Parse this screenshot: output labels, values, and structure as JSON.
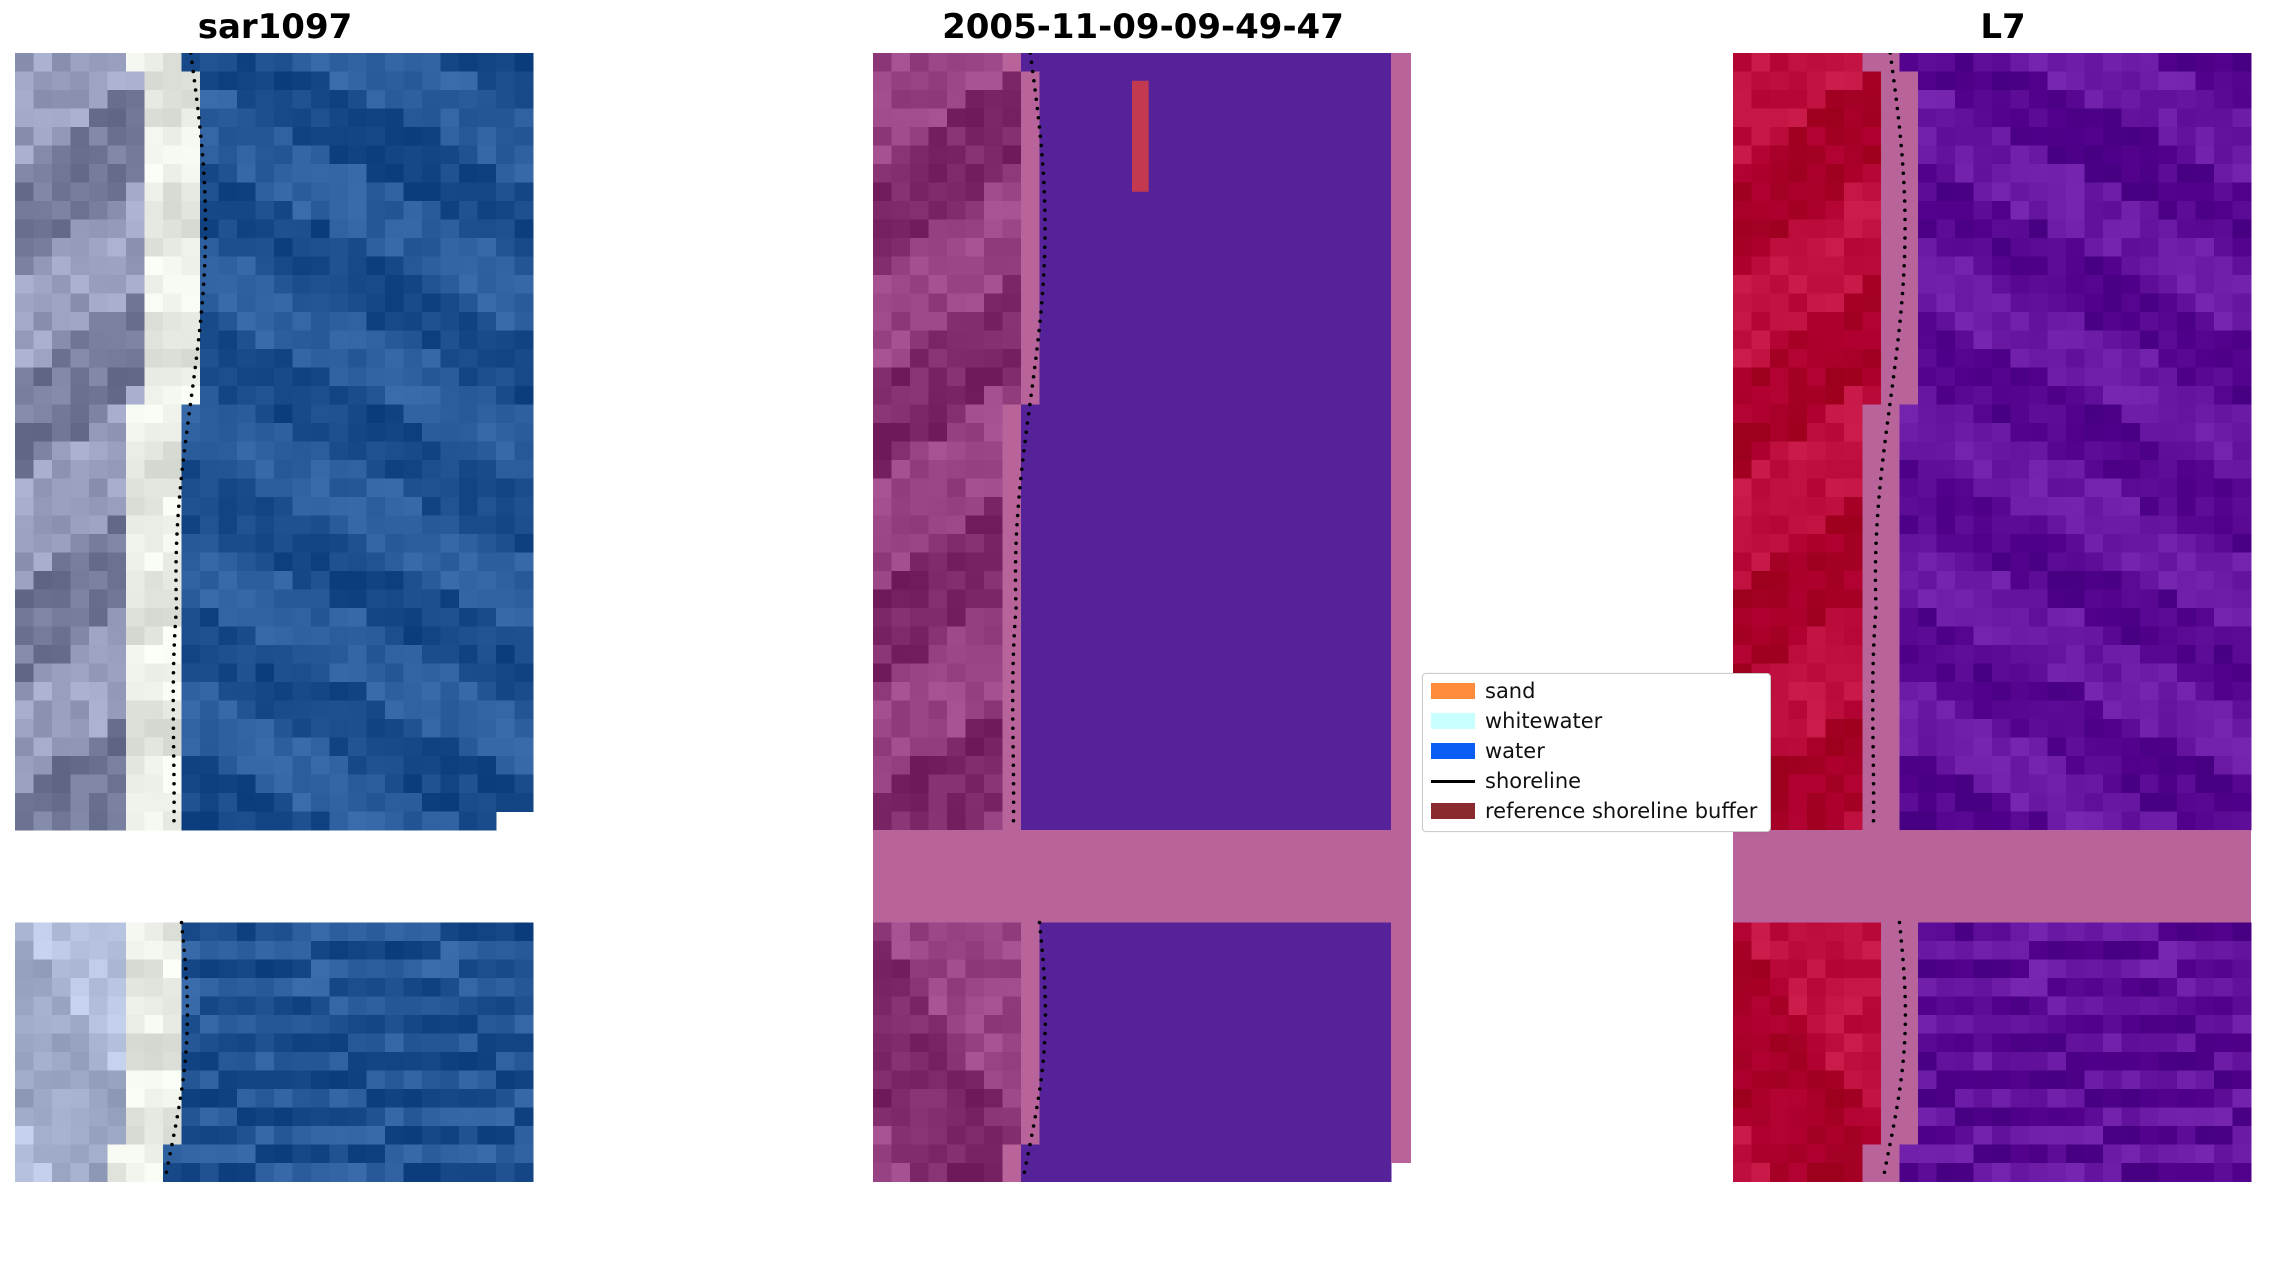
{
  "panels": [
    {
      "title": "sar1097",
      "type": "rgb-image"
    },
    {
      "title": "2005-11-09-09-49-47",
      "type": "classified-image"
    },
    {
      "title": "L7",
      "type": "index-image"
    }
  ],
  "legend": {
    "items": [
      {
        "label": "sand",
        "kind": "patch",
        "color": "#ff8c3a"
      },
      {
        "label": "whitewater",
        "kind": "patch",
        "color": "#c8ffff"
      },
      {
        "label": "water",
        "kind": "patch",
        "color": "#0a5cf5"
      },
      {
        "label": "shoreline",
        "kind": "line",
        "color": "#000000"
      },
      {
        "label": "reference shoreline buffer",
        "kind": "patch",
        "color": "#8b2a2e"
      }
    ]
  },
  "colors": {
    "background": "#ffffff",
    "sar_sand": "#9aa0c0",
    "sar_whitewater": "#f2f4ee",
    "sar_water": "#2e60a0",
    "class_land": "#9a4585",
    "class_water": "#55229a",
    "class_buffer": "#b8649a",
    "class_ref_strip": "#c33a50",
    "l7_land": "#c01040",
    "l7_water": "#6a1aa5",
    "l7_buffer": "#b8649a",
    "shoreline": "#000000"
  }
}
